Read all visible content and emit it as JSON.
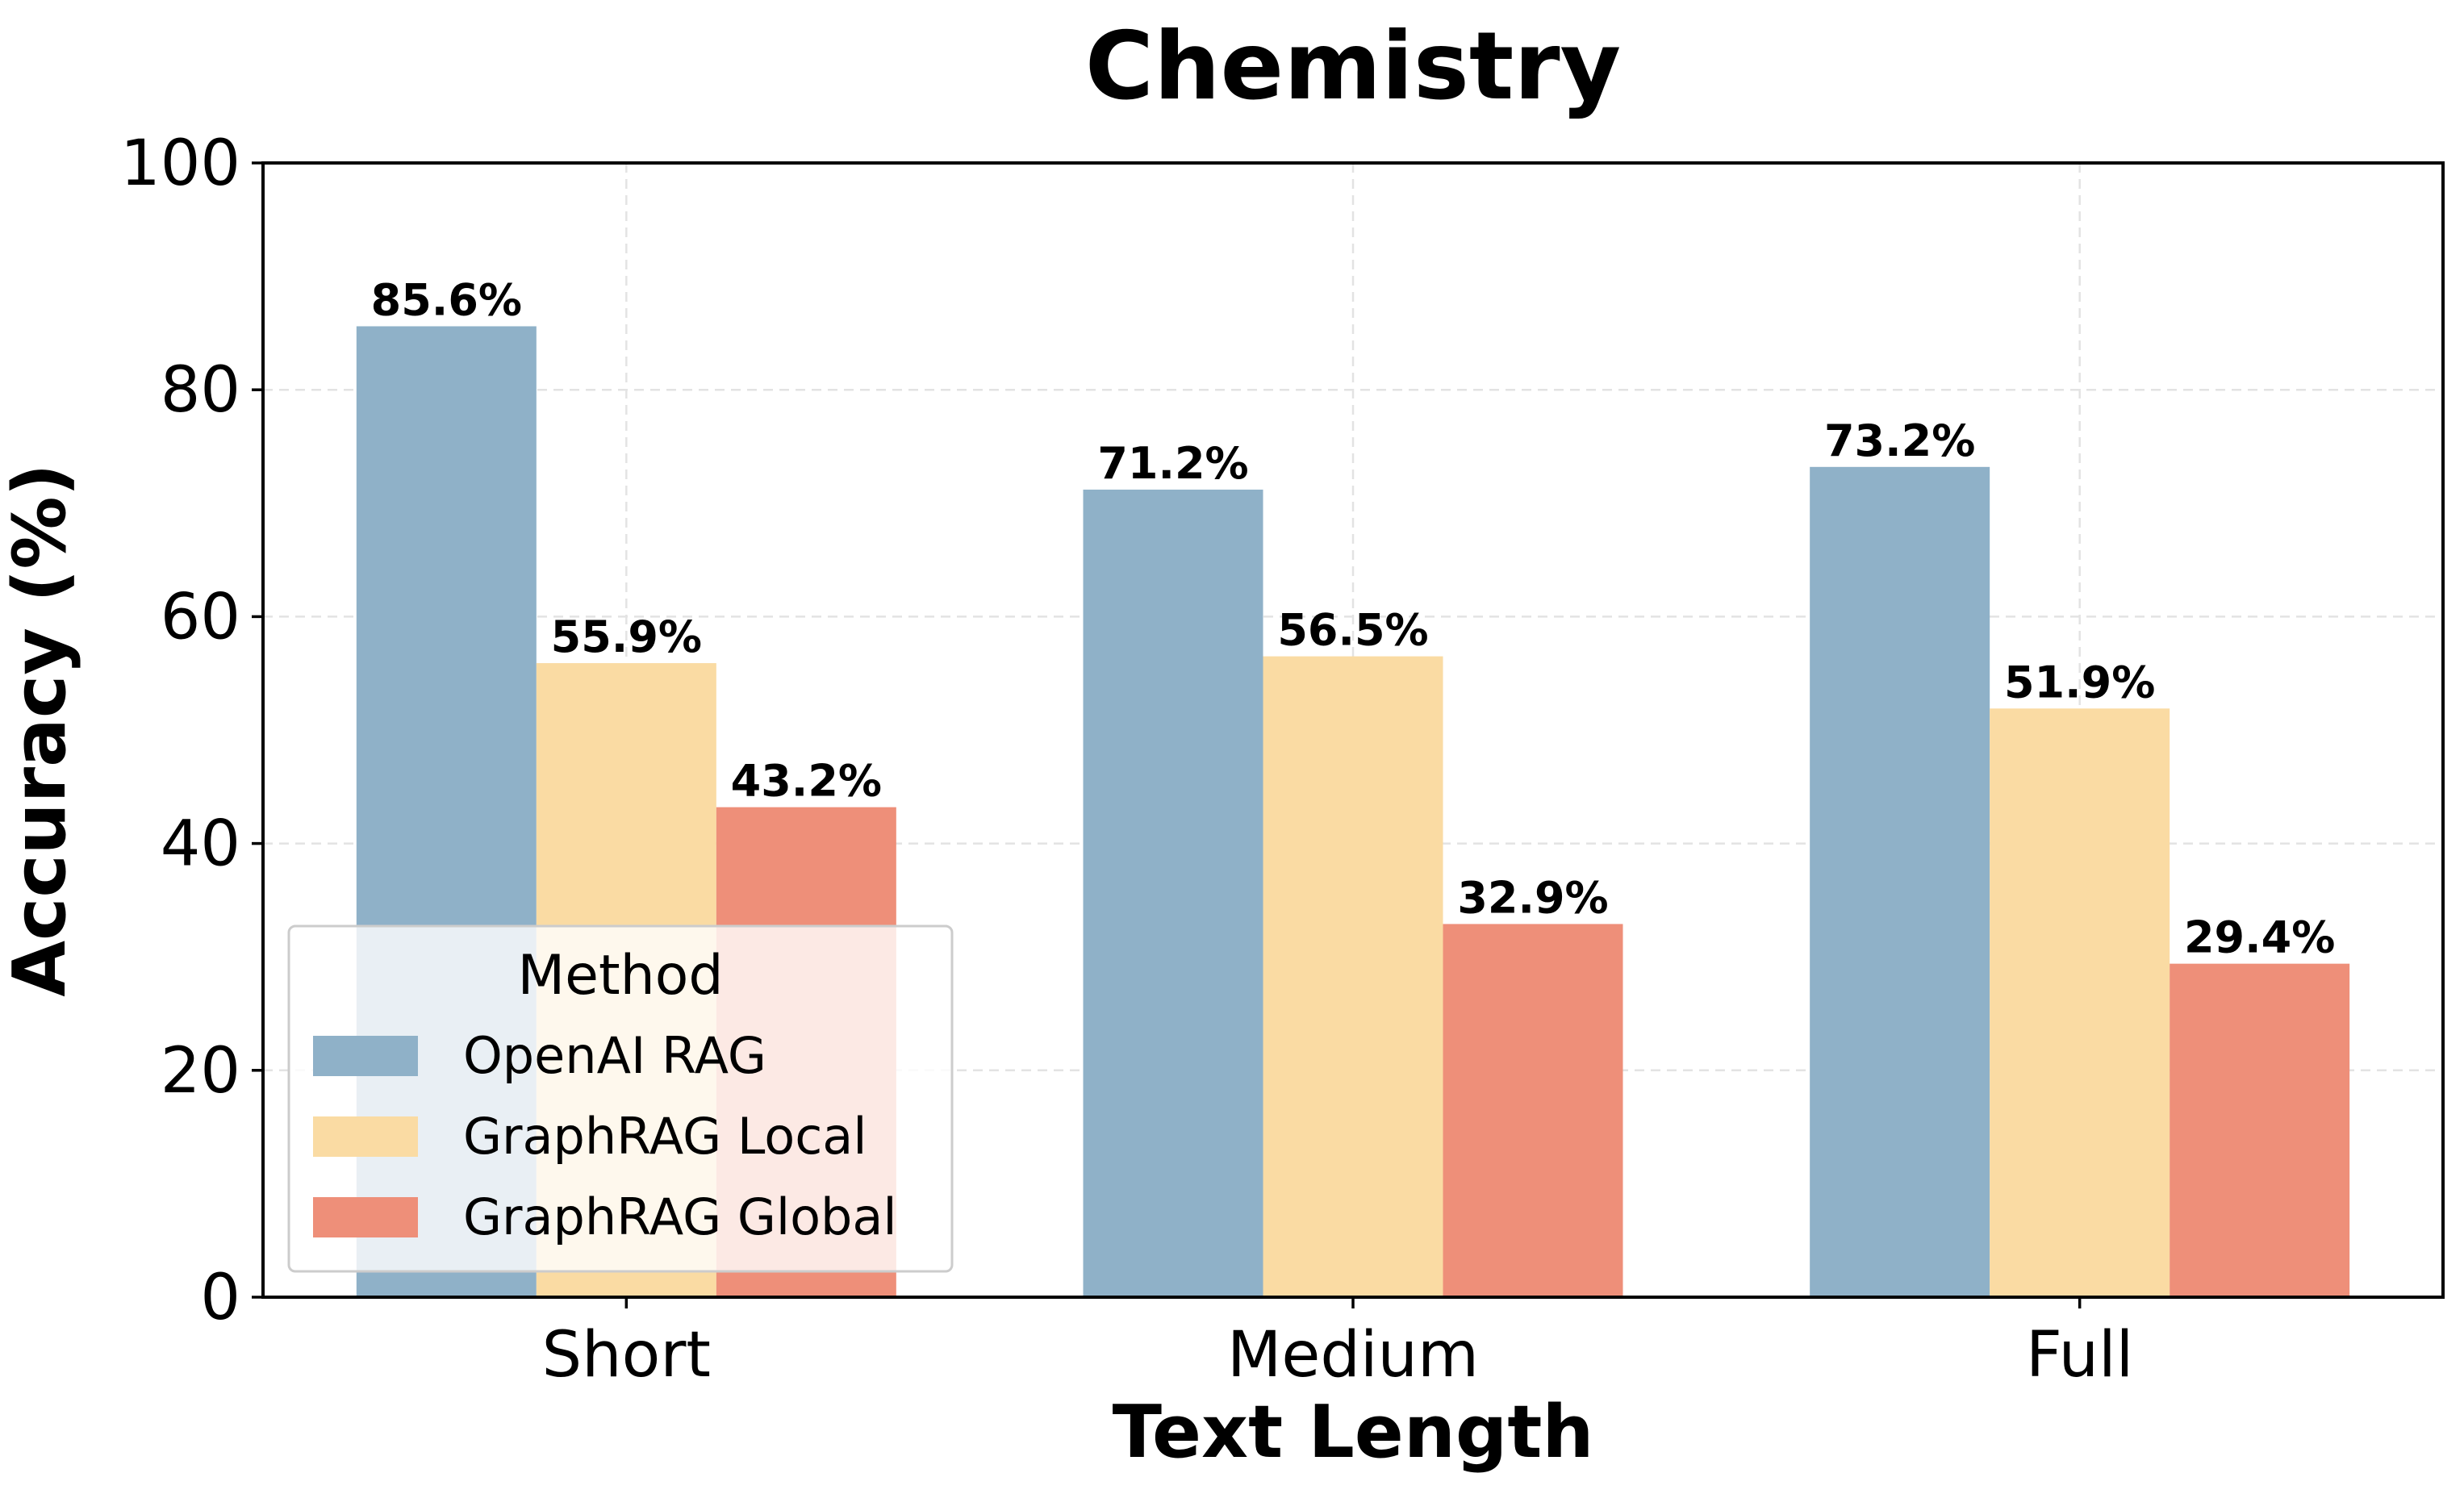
{
  "chart_data": {
    "type": "bar",
    "title": "Chemistry",
    "xlabel": "Text Length",
    "ylabel": "Accuracy (%)",
    "categories": [
      "Short",
      "Medium",
      "Full"
    ],
    "ylim": [
      0,
      100
    ],
    "yticks": [
      0,
      20,
      40,
      60,
      80,
      100
    ],
    "grid": true,
    "legend": {
      "title": "Method",
      "placement": "lower-left"
    },
    "series": [
      {
        "name": "OpenAI RAG",
        "values": [
          85.6,
          71.2,
          73.2
        ],
        "labels": [
          "85.6%",
          "71.2%",
          "73.2%"
        ],
        "color": "#8fb1c8"
      },
      {
        "name": "GraphRAG Local",
        "values": [
          55.9,
          56.5,
          51.9
        ],
        "labels": [
          "55.9%",
          "56.5%",
          "51.9%"
        ],
        "color": "#fadba3"
      },
      {
        "name": "GraphRAG Global",
        "values": [
          43.2,
          32.9,
          29.4
        ],
        "labels": [
          "43.2%",
          "32.9%",
          "29.4%"
        ],
        "color": "#ee8f79"
      }
    ]
  }
}
